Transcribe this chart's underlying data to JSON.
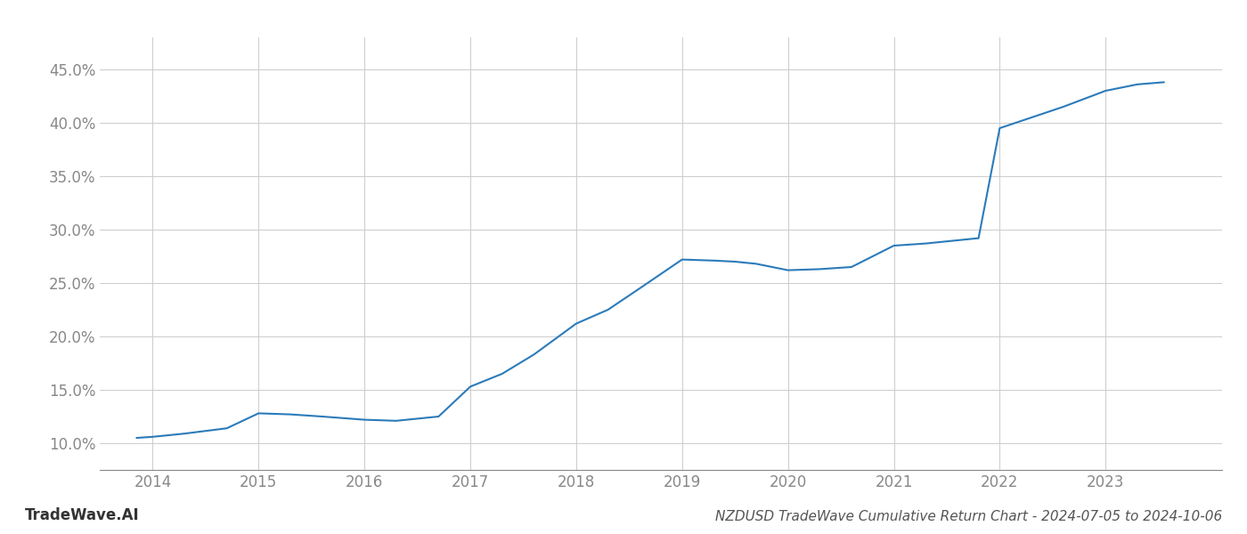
{
  "title": "NZDUSD TradeWave Cumulative Return Chart - 2024-07-05 to 2024-10-06",
  "watermark": "TradeWave.AI",
  "line_color": "#2b7bba",
  "background_color": "#ffffff",
  "grid_color": "#cccccc",
  "x_values": [
    2013.85,
    2014.0,
    2014.3,
    2014.7,
    2015.0,
    2015.3,
    2015.6,
    2016.0,
    2016.3,
    2016.7,
    2017.0,
    2017.3,
    2017.6,
    2018.0,
    2018.3,
    2018.6,
    2019.0,
    2019.3,
    2019.5,
    2019.7,
    2020.0,
    2020.3,
    2020.6,
    2021.0,
    2021.3,
    2021.6,
    2021.8,
    2022.0,
    2022.3,
    2022.6,
    2023.0,
    2023.3,
    2023.55
  ],
  "y_values": [
    10.5,
    10.6,
    10.9,
    11.4,
    12.8,
    12.7,
    12.5,
    12.2,
    12.1,
    12.5,
    15.3,
    16.5,
    18.3,
    21.2,
    22.5,
    24.5,
    27.2,
    27.1,
    27.0,
    26.8,
    26.2,
    26.3,
    26.5,
    28.5,
    28.7,
    29.0,
    29.2,
    39.5,
    40.5,
    41.5,
    43.0,
    43.6,
    43.8
  ],
  "xlim": [
    2013.5,
    2024.1
  ],
  "ylim": [
    7.5,
    48.0
  ],
  "yticks": [
    10.0,
    15.0,
    20.0,
    25.0,
    30.0,
    35.0,
    40.0,
    45.0
  ],
  "xticks": [
    2014,
    2015,
    2016,
    2017,
    2018,
    2019,
    2020,
    2021,
    2022,
    2023
  ],
  "line_width": 1.5,
  "title_fontsize": 11,
  "watermark_fontsize": 12,
  "tick_fontsize": 12,
  "tick_color": "#888888"
}
